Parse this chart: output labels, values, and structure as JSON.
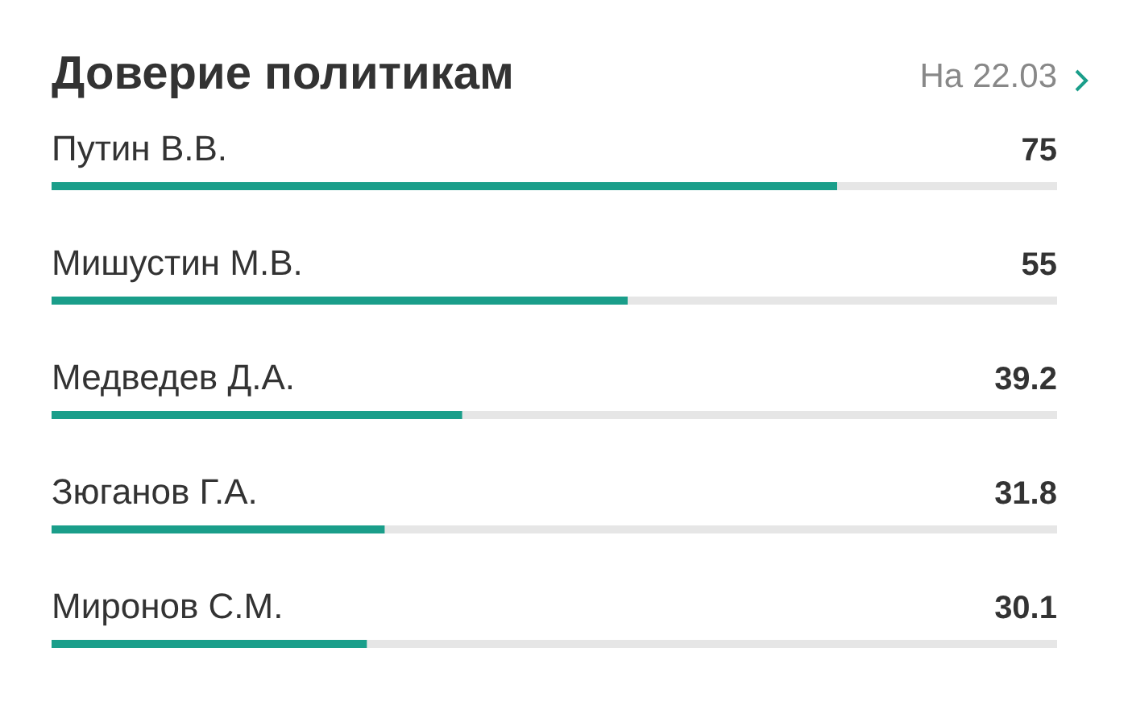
{
  "chart_data": {
    "type": "bar",
    "orientation": "horizontal",
    "title": "Доверие политикам",
    "annotations": [
      "На 22.03"
    ],
    "categories": [
      "Путин В.В.",
      "Мишустин М.В.",
      "Медведев Д.А.",
      "Зюганов Г.А.",
      "Миронов С.М."
    ],
    "values": [
      75,
      55,
      39.2,
      31.8,
      30.1
    ],
    "color": "#1a9e8a",
    "xlim": [
      0,
      96
    ],
    "data_labels": true,
    "tick_labels": false,
    "grid": false,
    "legend": false
  }
}
